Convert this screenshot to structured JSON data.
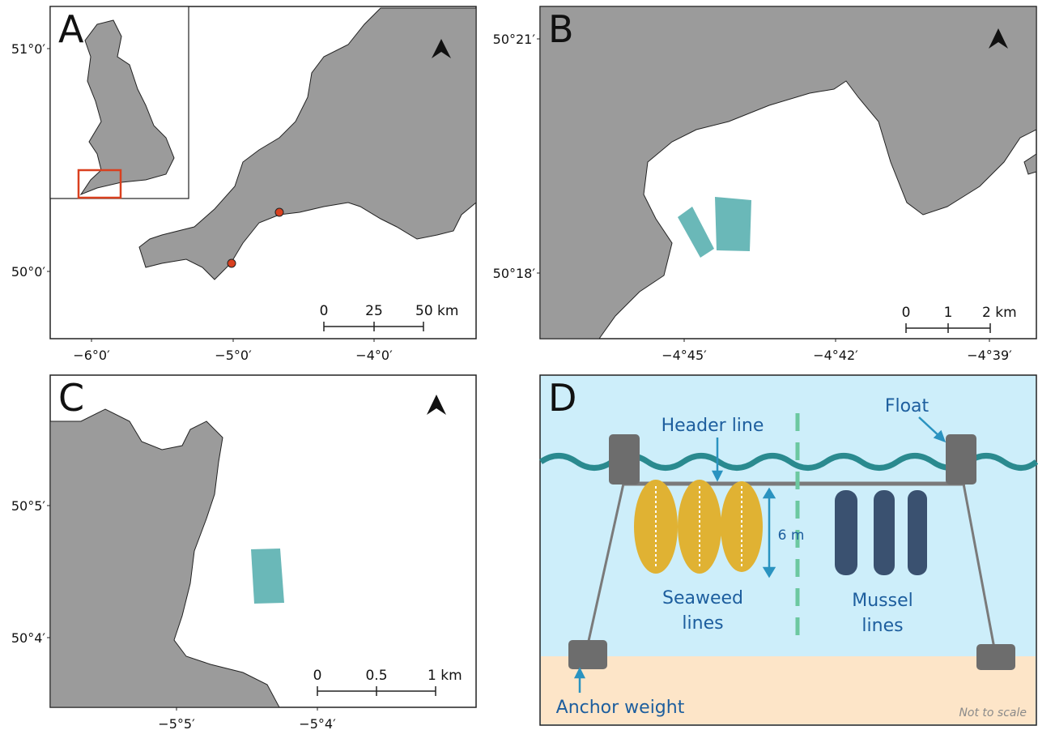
{
  "panels": [
    {
      "letter": "A",
      "yticks": [
        "51°0′",
        "50°0′"
      ],
      "xticks": [
        "−6°0′",
        "−5°0′",
        "−4°0′"
      ],
      "scale": [
        "0",
        "25",
        "50 km"
      ]
    },
    {
      "letter": "B",
      "yticks": [
        "50°21′",
        "50°18′"
      ],
      "xticks": [
        "−4°45′",
        "−4°42′",
        "−4°39′"
      ],
      "scale": [
        "0",
        "1",
        "2 km"
      ]
    },
    {
      "letter": "C",
      "yticks": [
        "50°5′",
        "50°4′"
      ],
      "xticks": [
        "−5°5′",
        "−5°4′"
      ],
      "scale": [
        "0",
        "0.5",
        "1 km"
      ]
    }
  ],
  "diagram": {
    "letter": "D",
    "header_line": "Header line",
    "float": "Float",
    "depth": "6 m",
    "seaweed": [
      "Seaweed",
      "lines"
    ],
    "mussel": [
      "Mussel",
      "lines"
    ],
    "anchor": "Anchor weight",
    "note": "Not to scale"
  }
}
